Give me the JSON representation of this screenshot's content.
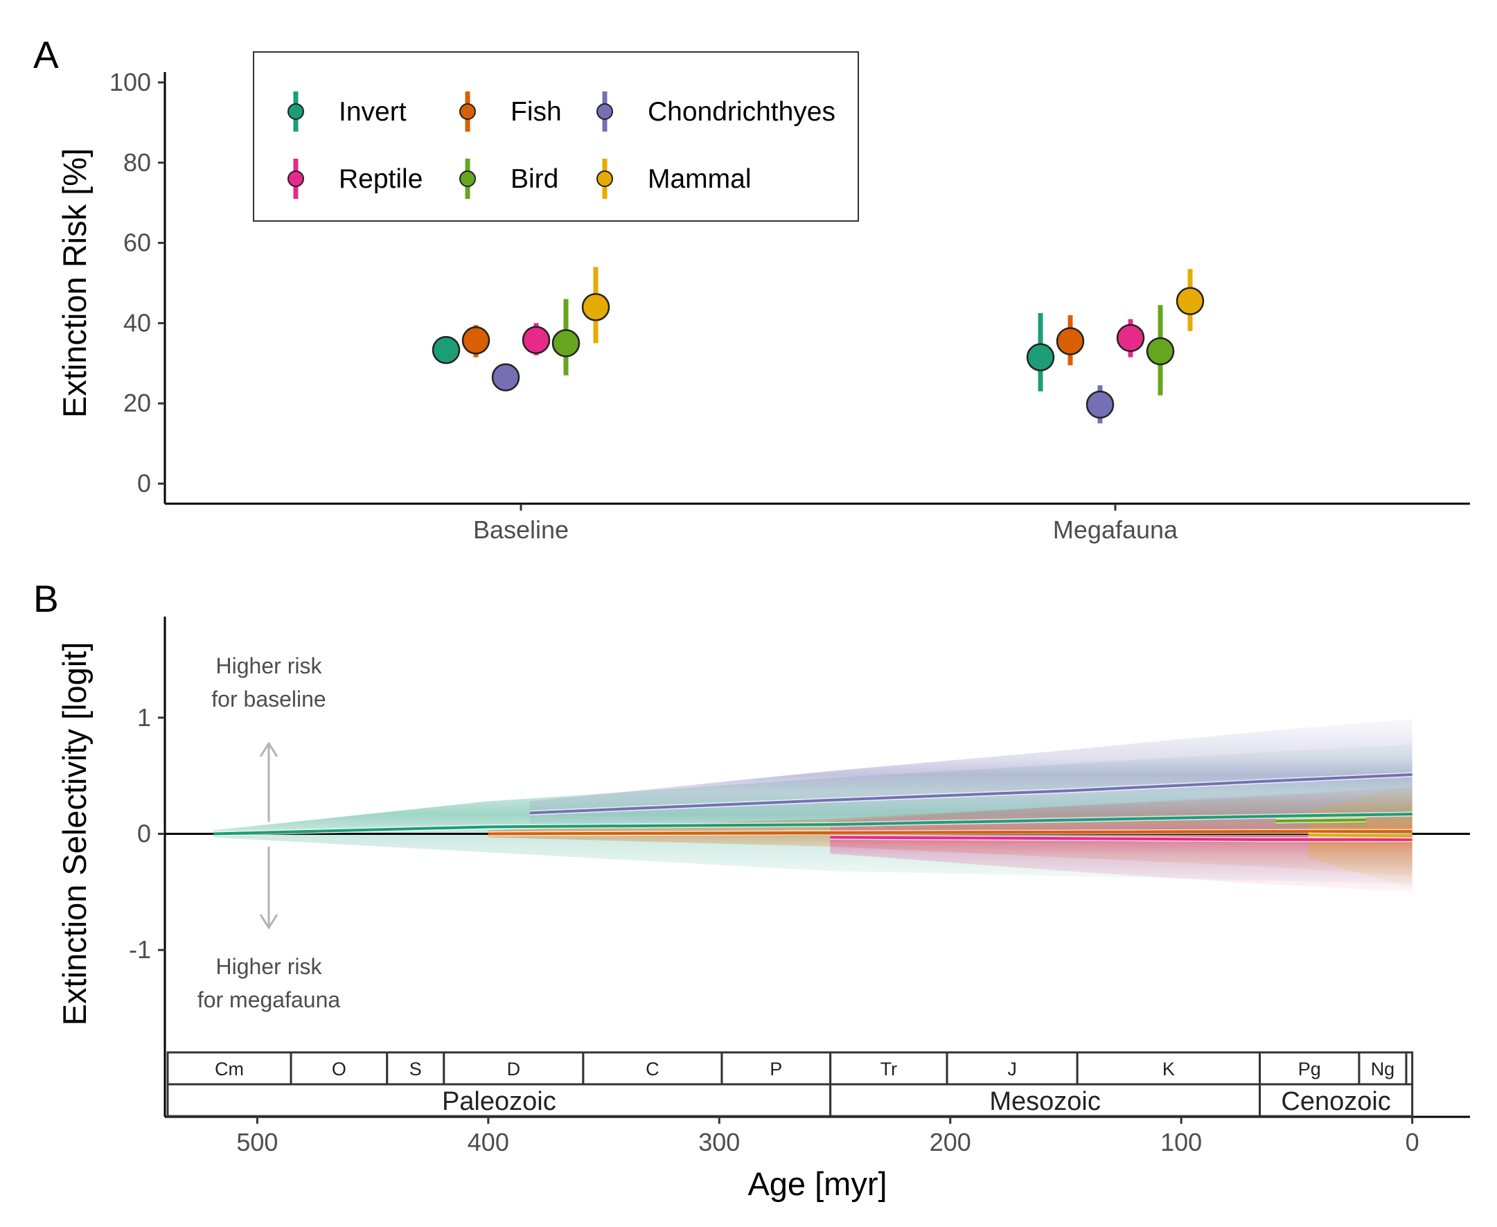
{
  "chart_data": [
    {
      "panel": "A",
      "type": "scatter",
      "title": "",
      "xlabel": "",
      "ylabel": "Extinction Risk [%]",
      "ylim": [
        -5,
        105
      ],
      "yticks": [
        0,
        20,
        40,
        60,
        80,
        100
      ],
      "categories": [
        "Baseline",
        "Megafauna"
      ],
      "grid": false,
      "legend_position": "top-left",
      "legend_rows": [
        [
          "Invert",
          "Fish",
          "Chondrichthyes"
        ],
        [
          "Reptile",
          "Bird",
          "Mammal"
        ]
      ],
      "series": [
        {
          "name": "Invert",
          "color": "#1b9e77",
          "values": [
            {
              "category": "Baseline",
              "y": 33.3,
              "low": 32.0,
              "high": 34.6
            },
            {
              "category": "Megafauna",
              "y": 31.5,
              "low": 23.0,
              "high": 42.5
            }
          ]
        },
        {
          "name": "Fish",
          "color": "#d95f02",
          "values": [
            {
              "category": "Baseline",
              "y": 35.7,
              "low": 31.5,
              "high": 39.5
            },
            {
              "category": "Megafauna",
              "y": 35.5,
              "low": 29.5,
              "high": 42.0
            }
          ]
        },
        {
          "name": "Chondrichthyes",
          "color": "#7570b3",
          "values": [
            {
              "category": "Baseline",
              "y": 26.5,
              "low": 24.5,
              "high": 28.5
            },
            {
              "category": "Megafauna",
              "y": 19.7,
              "low": 15.0,
              "high": 24.5
            }
          ]
        },
        {
          "name": "Reptile",
          "color": "#e7298a",
          "values": [
            {
              "category": "Baseline",
              "y": 35.8,
              "low": 32.0,
              "high": 40.0
            },
            {
              "category": "Megafauna",
              "y": 36.3,
              "low": 31.5,
              "high": 41.0
            }
          ]
        },
        {
          "name": "Bird",
          "color": "#66a61e",
          "values": [
            {
              "category": "Baseline",
              "y": 35.0,
              "low": 27.0,
              "high": 46.0
            },
            {
              "category": "Megafauna",
              "y": 33.0,
              "low": 22.0,
              "high": 44.5
            }
          ]
        },
        {
          "name": "Mammal",
          "color": "#e6ab02",
          "values": [
            {
              "category": "Baseline",
              "y": 44.0,
              "low": 35.0,
              "high": 54.0
            },
            {
              "category": "Megafauna",
              "y": 45.5,
              "low": 38.0,
              "high": 53.5
            }
          ]
        }
      ]
    },
    {
      "panel": "B",
      "type": "line",
      "title": "",
      "xlabel": "Age [myr]",
      "ylabel": "Extinction Selectivity [logit]",
      "xlim": [
        540,
        -25
      ],
      "ylim": [
        -1.87,
        1.87
      ],
      "xticks": [
        500,
        400,
        300,
        200,
        100,
        0
      ],
      "yticks": [
        -1,
        0,
        1
      ],
      "reference_line_y": 0,
      "annotations": {
        "upper": [
          "Higher risk",
          "for baseline"
        ],
        "lower": [
          "Higher risk",
          "for megafauna"
        ]
      },
      "series": [
        {
          "name": "Invert",
          "color": "#1b9e77",
          "x": [
            519,
            400,
            252,
            66,
            0
          ],
          "y": [
            0.0,
            0.06,
            0.08,
            0.15,
            0.17
          ],
          "band_halfwidth": [
            0.03,
            0.22,
            0.4,
            0.55,
            0.6
          ]
        },
        {
          "name": "Fish",
          "color": "#d95f02",
          "x": [
            400,
            252,
            66,
            0
          ],
          "y": [
            0.0,
            0.01,
            0.02,
            0.02
          ],
          "band_halfwidth": [
            0.03,
            0.12,
            0.3,
            0.38
          ]
        },
        {
          "name": "Chondrichthyes",
          "color": "#7570b3",
          "x": [
            382,
            252,
            150,
            66,
            0
          ],
          "y": [
            0.18,
            0.29,
            0.37,
            0.45,
            0.51
          ],
          "band_halfwidth": [
            0.1,
            0.25,
            0.35,
            0.43,
            0.48
          ]
        },
        {
          "name": "Reptile",
          "color": "#e7298a",
          "x": [
            252,
            150,
            66,
            0
          ],
          "y": [
            -0.03,
            -0.04,
            -0.05,
            -0.05
          ],
          "band_halfwidth": [
            0.14,
            0.28,
            0.38,
            0.45
          ]
        },
        {
          "name": "Bird",
          "color": "#66a61e",
          "x": [
            59,
            20
          ],
          "y": [
            0.11,
            0.12
          ],
          "band_halfwidth": [
            0.05,
            0.07
          ]
        },
        {
          "name": "Mammal",
          "color": "#e6ab02",
          "x": [
            45,
            0
          ],
          "y": [
            -0.01,
            -0.02
          ],
          "band_halfwidth": [
            0.2,
            0.45
          ]
        }
      ],
      "periods": [
        {
          "label": "Cm",
          "start": 538.8,
          "end": 485.4
        },
        {
          "label": "O",
          "start": 485.4,
          "end": 443.8
        },
        {
          "label": "S",
          "start": 443.8,
          "end": 419.2
        },
        {
          "label": "D",
          "start": 419.2,
          "end": 358.9
        },
        {
          "label": "C",
          "start": 358.9,
          "end": 298.9
        },
        {
          "label": "P",
          "start": 298.9,
          "end": 251.9
        },
        {
          "label": "Tr",
          "start": 251.9,
          "end": 201.4
        },
        {
          "label": "J",
          "start": 201.4,
          "end": 145.0
        },
        {
          "label": "K",
          "start": 145.0,
          "end": 66.0
        },
        {
          "label": "Pg",
          "start": 66.0,
          "end": 23.0
        },
        {
          "label": "Ng",
          "start": 23.0,
          "end": 2.6
        },
        {
          "label": "",
          "start": 2.6,
          "end": 0.0
        }
      ],
      "eras": [
        {
          "label": "Paleozoic",
          "start": 538.8,
          "end": 251.9
        },
        {
          "label": "Mesozoic",
          "start": 251.9,
          "end": 66.0
        },
        {
          "label": "Cenozoic",
          "start": 66.0,
          "end": 0.0
        }
      ]
    }
  ]
}
